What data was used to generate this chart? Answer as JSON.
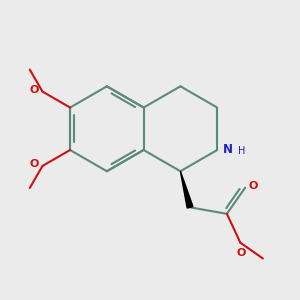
{
  "bg_color": "#ebebeb",
  "bond_color": "#5a8a78",
  "N_color": "#2020cc",
  "O_color": "#cc1111",
  "H_color": "#5a8a78",
  "lw": 1.5,
  "figsize": [
    3.0,
    3.0
  ],
  "dpi": 100,
  "xlim": [
    -3.5,
    3.5
  ],
  "ylim": [
    -3.5,
    3.5
  ],
  "bl": 1.0
}
